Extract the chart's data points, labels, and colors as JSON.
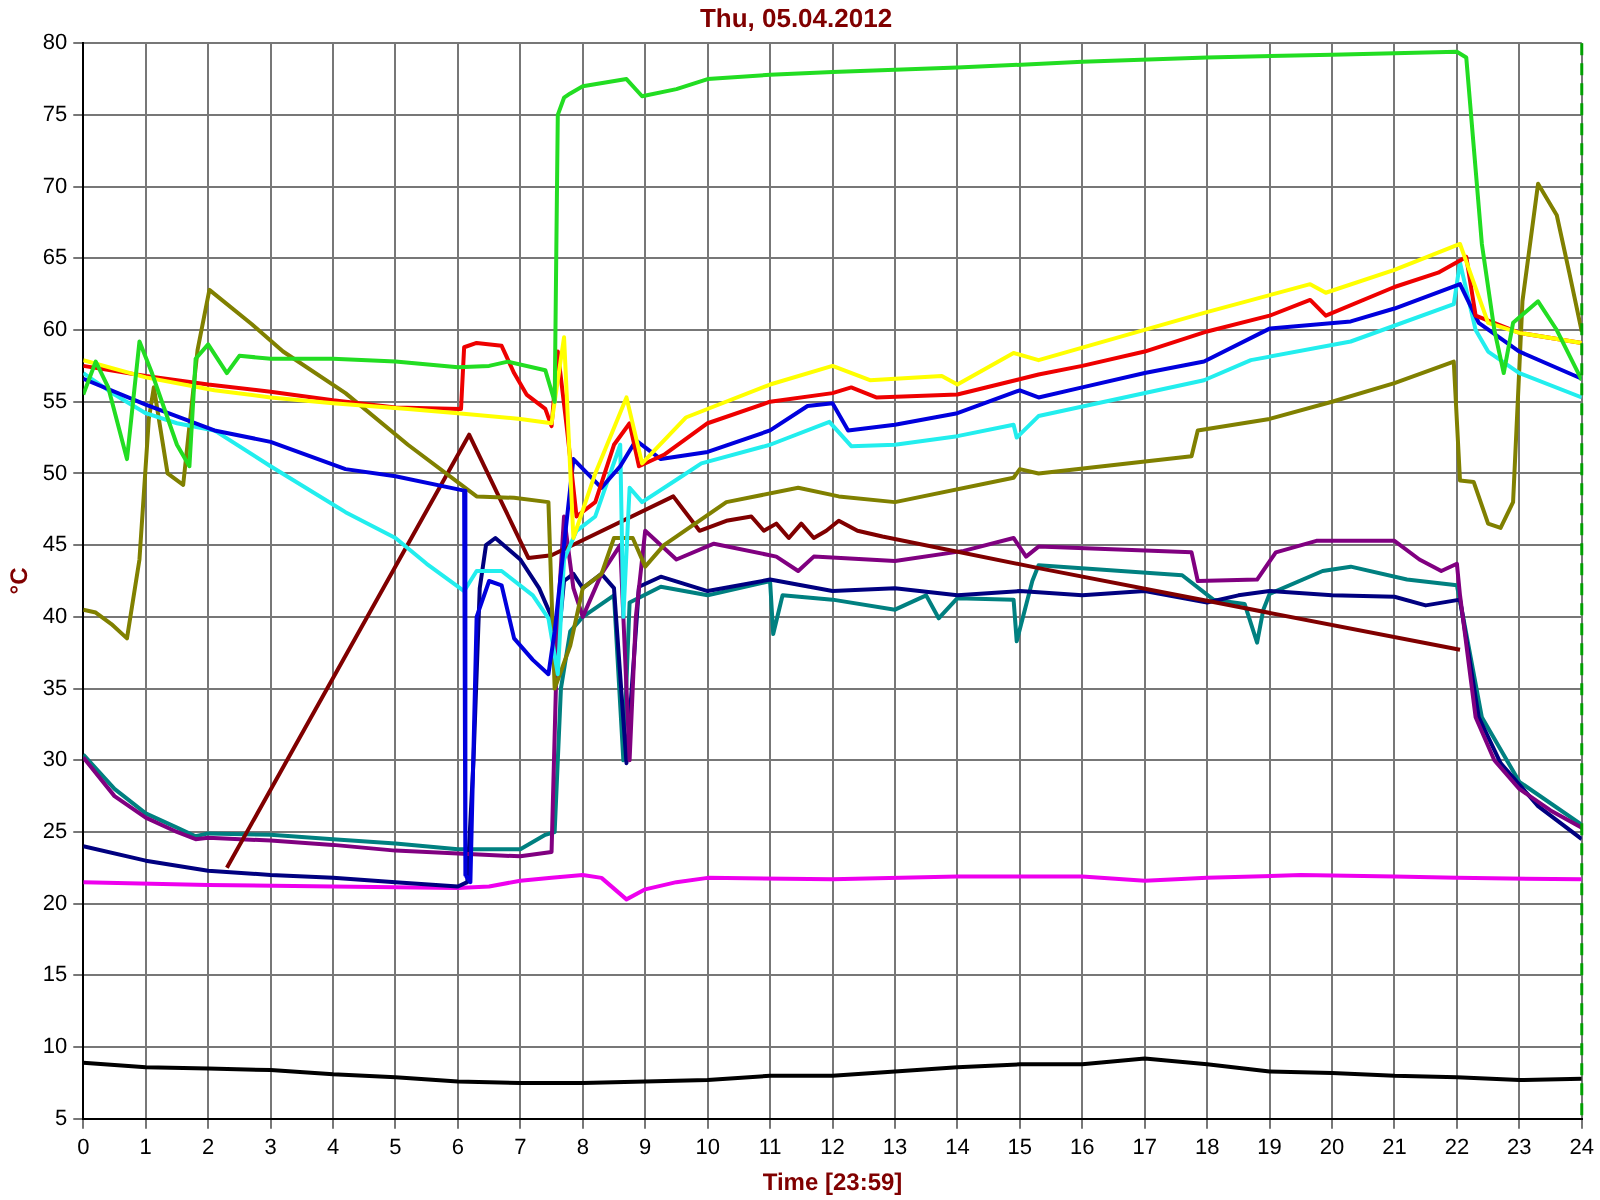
{
  "chart_data": {
    "type": "line",
    "title": "Thu, 05.04.2012",
    "xlabel": "Time [23:59]",
    "ylabel": "°C",
    "xlim": [
      0,
      24
    ],
    "ylim": [
      5,
      80
    ],
    "xticks": [
      0,
      1,
      2,
      3,
      4,
      5,
      6,
      7,
      8,
      9,
      10,
      11,
      12,
      13,
      14,
      15,
      16,
      17,
      18,
      19,
      20,
      21,
      22,
      23,
      24
    ],
    "yticks": [
      5,
      10,
      15,
      20,
      25,
      30,
      35,
      40,
      45,
      50,
      55,
      60,
      65,
      70,
      75,
      80
    ],
    "grid": true,
    "legend": false,
    "marker": "none",
    "line_style": "solid",
    "ref_lines": [
      {
        "axis": "x",
        "value": 24,
        "color": "#00a000",
        "line_style": "dashed"
      }
    ],
    "series": [
      {
        "color": "#22dd22",
        "x": [
          0,
          0.2,
          0.4,
          0.7,
          0.9,
          1.1,
          1.5,
          1.7,
          1.8,
          2,
          2.3,
          2.5,
          3,
          4,
          5,
          6,
          6.5,
          6.8,
          7.4,
          7.55,
          7.6,
          7.7,
          7.8,
          8,
          8.7,
          8.95,
          9.5,
          10,
          11,
          12,
          14,
          16,
          18,
          20,
          22,
          22.15,
          22.4,
          22.6,
          22.75,
          22.9,
          23.3,
          23.6,
          24
        ],
        "values": [
          55.5,
          57.8,
          56,
          51,
          59.2,
          57,
          52,
          50.5,
          58,
          59,
          57,
          58.2,
          58,
          58,
          57.8,
          57.4,
          57.5,
          57.8,
          57.2,
          55,
          75,
          76.2,
          76.5,
          77,
          77.5,
          76.3,
          76.8,
          77.5,
          77.8,
          78,
          78.3,
          78.7,
          79,
          79.2,
          79.4,
          79,
          66,
          60,
          57,
          60.5,
          62,
          60,
          56.5
        ]
      },
      {
        "color": "#ffff00",
        "x": [
          0,
          1,
          2.1,
          3,
          4,
          5.2,
          6,
          7,
          7.5,
          7.7,
          7.85,
          8.2,
          8.7,
          8.95,
          9.65,
          11,
          12,
          12.6,
          13.75,
          14,
          14.9,
          15.3,
          17.95,
          19.65,
          19.9,
          21,
          22.05,
          22.5,
          23,
          24
        ],
        "values": [
          57.9,
          56.7,
          55.8,
          55.3,
          54.9,
          54.5,
          54.2,
          53.8,
          53.5,
          59.5,
          45.5,
          50,
          55.3,
          50.7,
          53.9,
          56.2,
          57.5,
          56.5,
          56.8,
          56.2,
          58.4,
          57.9,
          61.2,
          63.2,
          62.6,
          64.2,
          66,
          60.5,
          59.8,
          59.1
        ]
      },
      {
        "color": "#ee0000",
        "x": [
          0,
          1,
          2,
          3,
          4,
          5,
          6.05,
          6.1,
          6.3,
          6.7,
          6.9,
          7.1,
          7.4,
          7.5,
          7.6,
          7.75,
          7.9,
          8.2,
          8.5,
          8.75,
          8.9,
          9.3,
          10,
          11,
          12,
          12.3,
          12.7,
          14,
          15.3,
          16,
          17,
          18,
          19,
          19.65,
          19.9,
          21,
          21.7,
          22.15,
          22.3,
          23,
          24
        ],
        "values": [
          57.5,
          56.8,
          56.2,
          55.7,
          55.1,
          54.6,
          54.5,
          58.8,
          59.1,
          58.9,
          57,
          55.5,
          54.5,
          53.3,
          58.5,
          53,
          47,
          48,
          52,
          53.5,
          50.5,
          51.3,
          53.5,
          55,
          55.6,
          56,
          55.3,
          55.5,
          56.9,
          57.5,
          58.5,
          59.9,
          61,
          62.1,
          61,
          63,
          64,
          65.1,
          61,
          59.8,
          59.1
        ]
      },
      {
        "color": "#0000dd",
        "x": [
          0,
          1,
          2.1,
          3,
          4.2,
          5,
          6.1,
          6.12,
          6.2,
          6.3,
          6.5,
          6.7,
          6.9,
          7.2,
          7.45,
          7.55,
          7.7,
          7.85,
          8.3,
          8.6,
          8.85,
          9.25,
          10,
          11,
          11.6,
          12,
          12.25,
          13,
          14,
          15,
          15.3,
          16,
          17,
          17.95,
          19,
          20.3,
          21,
          22.05,
          22.35,
          23,
          24
        ],
        "values": [
          56.6,
          54.8,
          53,
          52.2,
          50.3,
          49.8,
          48.8,
          22,
          21.5,
          40,
          42.5,
          42.2,
          38.5,
          37,
          36,
          39,
          45,
          51,
          49,
          50.5,
          52.3,
          51,
          51.5,
          53,
          54.7,
          54.9,
          53,
          53.4,
          54.2,
          55.8,
          55.3,
          56,
          57,
          57.8,
          60.1,
          60.6,
          61.5,
          63.2,
          60.5,
          58.5,
          56.6
        ]
      },
      {
        "color": "#22eeee",
        "x": [
          0,
          0.5,
          1,
          1.5,
          2.1,
          3,
          4.2,
          5,
          5.5,
          6.1,
          6.3,
          6.7,
          7.2,
          7.45,
          7.6,
          7.7,
          7.9,
          8.2,
          8.6,
          8.65,
          8.75,
          8.95,
          9.55,
          9.9,
          11,
          11.95,
          12.3,
          13,
          14,
          14.9,
          14.95,
          15.3,
          17.95,
          18.7,
          20.3,
          21.95,
          22.05,
          22.3,
          22.5,
          23,
          24
        ],
        "values": [
          57,
          55.5,
          54.2,
          53.5,
          53,
          50.5,
          47.3,
          45.5,
          43.7,
          41.8,
          43.2,
          43.2,
          41.5,
          39.9,
          36,
          44,
          46,
          47,
          52,
          40,
          49,
          48,
          49.7,
          50.7,
          52,
          53.6,
          51.9,
          52,
          52.6,
          53.4,
          52.5,
          54,
          56.5,
          57.9,
          59.2,
          61.8,
          64.7,
          60,
          58.5,
          57,
          55.3
        ]
      },
      {
        "color": "#808000",
        "x": [
          0,
          0.2,
          0.45,
          0.7,
          0.9,
          1.05,
          1.13,
          1.35,
          1.6,
          1.83,
          2.02,
          2.7,
          3.2,
          4.2,
          5.2,
          6.3,
          6.9,
          7.45,
          7.55,
          7.8,
          8,
          8.3,
          8.5,
          8.8,
          9,
          9.3,
          10.3,
          11.45,
          12.1,
          13,
          14.9,
          15,
          15.3,
          17.75,
          17.85,
          19,
          20,
          21,
          21.95,
          22.05,
          22.27,
          22.5,
          22.7,
          22.9,
          23.05,
          23.3,
          23.6,
          23.8,
          24
        ],
        "values": [
          40.5,
          40.3,
          39.5,
          38.5,
          44,
          53.8,
          56,
          50,
          49.2,
          58.6,
          62.8,
          60.4,
          58.5,
          55.6,
          52,
          48.4,
          48.3,
          48,
          35,
          38,
          42,
          43,
          45.5,
          45.5,
          43.5,
          45,
          48,
          49,
          48.4,
          48,
          49.7,
          50.3,
          50,
          51.2,
          53,
          53.8,
          55,
          56.3,
          57.8,
          49.5,
          49.4,
          46.5,
          46.2,
          48,
          62,
          70.2,
          68,
          64,
          59.9
        ]
      },
      {
        "color": "#800000",
        "x": [
          2.3,
          6.18,
          7.13,
          7.5,
          9.45,
          9.87,
          10.3,
          10.7,
          10.9,
          11.1,
          11.3,
          11.5,
          11.7,
          11.9,
          12.1,
          12.4,
          12.8,
          15.3,
          22.05
        ],
        "values": [
          22.5,
          52.7,
          44.1,
          44.3,
          48.4,
          46,
          46.7,
          47,
          46,
          46.5,
          45.5,
          46.5,
          45.5,
          46,
          46.7,
          46,
          45.6,
          43.4,
          37.7
        ]
      },
      {
        "color": "#800080",
        "x": [
          0,
          0.5,
          1,
          1.5,
          1.8,
          2,
          3,
          4,
          5,
          6,
          7,
          7.5,
          7.6,
          7.7,
          7.85,
          8,
          8.3,
          8.6,
          8.75,
          8.85,
          9,
          9.5,
          10.1,
          11.1,
          11.45,
          11.7,
          13,
          14.1,
          14.9,
          15.1,
          15.3,
          17.75,
          17.85,
          18.8,
          19.1,
          19.75,
          21,
          21.4,
          21.75,
          22,
          22.05,
          22.3,
          22.6,
          23,
          23.5,
          24
        ],
        "values": [
          30.2,
          27.5,
          26,
          25,
          24.5,
          24.6,
          24.4,
          24.1,
          23.7,
          23.5,
          23.3,
          23.6,
          40,
          47,
          42,
          40,
          43,
          45,
          30,
          40,
          46,
          44,
          45.1,
          44.2,
          43.2,
          44.2,
          43.9,
          44.6,
          45.5,
          44.2,
          44.9,
          44.5,
          42.5,
          42.6,
          44.5,
          45.3,
          45.3,
          44,
          43.2,
          43.7,
          41.5,
          33,
          30,
          28,
          26.5,
          25.3
        ]
      },
      {
        "color": "#000080",
        "x": [
          0,
          1,
          2,
          3,
          4,
          5,
          6,
          6.15,
          6.25,
          6.35,
          6.45,
          6.6,
          7,
          7.3,
          7.5,
          7.6,
          7.7,
          7.85,
          8,
          8.3,
          8.5,
          8.7,
          8.9,
          9.25,
          10,
          11,
          12,
          13,
          14,
          15,
          16,
          17,
          18,
          18.5,
          19,
          20,
          21,
          21.5,
          22.05,
          22.35,
          22.7,
          23.3,
          24
        ],
        "values": [
          24,
          23,
          22.3,
          22,
          21.8,
          21.5,
          21.2,
          21.5,
          30,
          42,
          45,
          45.5,
          44,
          42,
          40,
          38,
          42.5,
          43,
          42,
          43,
          42,
          29.8,
          42.1,
          42.8,
          41.8,
          42.6,
          41.8,
          42,
          41.5,
          41.8,
          41.5,
          41.8,
          41,
          41.5,
          41.8,
          41.5,
          41.4,
          40.8,
          41.2,
          33,
          29.8,
          26.8,
          24.5
        ]
      },
      {
        "color": "#008080",
        "x": [
          0,
          0.5,
          1,
          1.5,
          1.8,
          2,
          3,
          4,
          5,
          6,
          7,
          7.4,
          7.55,
          7.65,
          7.8,
          8,
          8.5,
          8.65,
          8.75,
          9.25,
          10,
          11,
          11.05,
          11.2,
          12,
          13,
          13.5,
          13.7,
          14,
          14.9,
          14.95,
          15.2,
          15.3,
          17.6,
          18.1,
          18.6,
          18.8,
          18.9,
          19,
          19.85,
          20.3,
          21.2,
          22,
          22.1,
          22.4,
          23,
          24
        ],
        "values": [
          30.4,
          28,
          26.3,
          25.3,
          24.7,
          24.9,
          24.8,
          24.5,
          24.2,
          23.8,
          23.8,
          24.8,
          25,
          35,
          39,
          40,
          41.5,
          30,
          41,
          42.1,
          41.5,
          42.5,
          38.8,
          41.5,
          41.2,
          40.5,
          41.5,
          39.9,
          41.3,
          41.2,
          38.3,
          42.5,
          43.6,
          42.9,
          41.2,
          40.9,
          38.2,
          40.5,
          41.6,
          43.2,
          43.5,
          42.6,
          42.2,
          40,
          33,
          28.5,
          25.5
        ]
      },
      {
        "color": "#ee00ee",
        "x": [
          0,
          2,
          4,
          6,
          6.5,
          7,
          7.5,
          8,
          8.3,
          8.7,
          9,
          9.5,
          10,
          12,
          14,
          16,
          17,
          18,
          19.5,
          21,
          22,
          24
        ],
        "values": [
          21.5,
          21.3,
          21.2,
          21.1,
          21.2,
          21.6,
          21.8,
          22,
          21.8,
          20.3,
          21,
          21.5,
          21.8,
          21.7,
          21.9,
          21.9,
          21.6,
          21.8,
          22,
          21.9,
          21.8,
          21.7
        ]
      },
      {
        "color": "#000000",
        "x": [
          0,
          1,
          2,
          3,
          4,
          5,
          6,
          7,
          8,
          9,
          10,
          11,
          12,
          13,
          14,
          15,
          16,
          17,
          18,
          19,
          20,
          21,
          22,
          23,
          24
        ],
        "values": [
          8.9,
          8.6,
          8.5,
          8.4,
          8.1,
          7.9,
          7.6,
          7.5,
          7.5,
          7.6,
          7.7,
          8,
          8,
          8.3,
          8.6,
          8.8,
          8.8,
          9.2,
          8.8,
          8.3,
          8.2,
          8,
          7.9,
          7.7,
          7.8
        ]
      }
    ]
  }
}
